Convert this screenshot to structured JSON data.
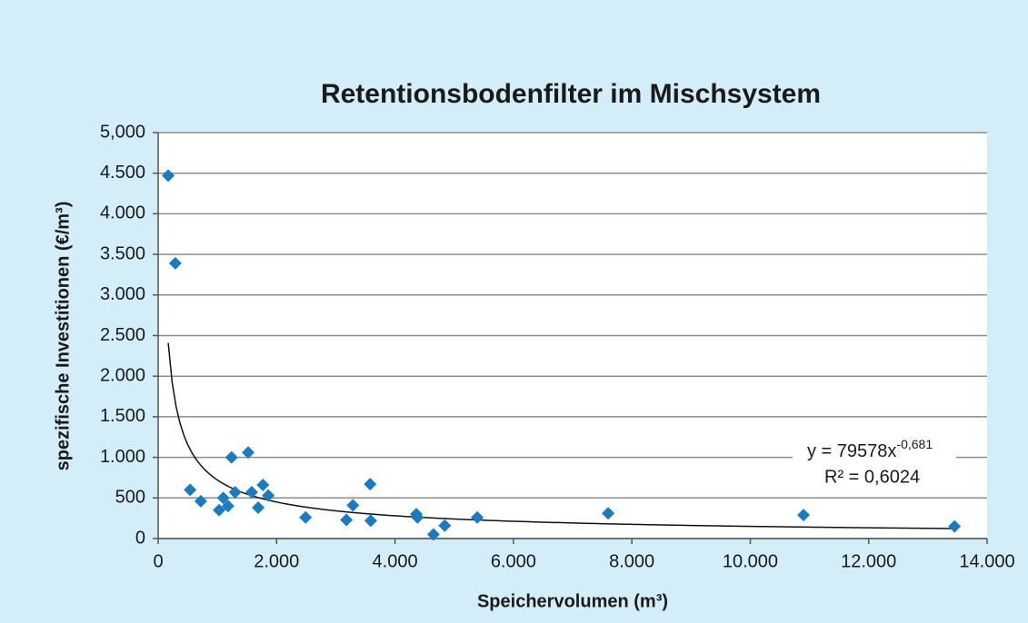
{
  "chart_data": {
    "type": "scatter",
    "title": "Retentionsbodenfilter im Mischsystem",
    "x_label": "Speichervolumen (m³)",
    "y_label": "spezifische Investitionen (€/m³)",
    "color": "#1b7bc0",
    "grid": true,
    "x": [
      170,
      290,
      540,
      720,
      1030,
      1100,
      1180,
      1240,
      1300,
      1520,
      1580,
      1690,
      1770,
      1860,
      2490,
      3180,
      3290,
      3580,
      3590,
      4360,
      4380,
      4650,
      4840,
      5390,
      7600,
      10900,
      13450
    ],
    "values": [
      4470,
      3390,
      600,
      460,
      350,
      500,
      400,
      1000,
      570,
      1060,
      570,
      380,
      660,
      530,
      260,
      230,
      410,
      670,
      220,
      300,
      260,
      50,
      160,
      260,
      310,
      290,
      150
    ],
    "xlim": [
      0,
      14000
    ],
    "xticks": [
      0,
      {
        "value": 2000,
        "label": "2.000"
      },
      {
        "value": 4000,
        "label": "4.000"
      },
      {
        "value": 6000,
        "label": "6.000"
      },
      {
        "value": 8000,
        "label": "8.000"
      },
      {
        "value": 10000,
        "label": "10.000"
      },
      {
        "value": 12000,
        "label": "12.000"
      },
      {
        "value": 14000,
        "label": "14.000"
      }
    ],
    "ylim": [
      0,
      5000
    ],
    "yticks": [
      0,
      {
        "value": 500,
        "label": "500"
      },
      {
        "value": 1000,
        "label": "1.000"
      },
      {
        "value": 1500,
        "label": "1.500"
      },
      {
        "value": 2000,
        "label": "2.000"
      },
      {
        "value": 2500,
        "label": "2.500"
      },
      {
        "value": 3000,
        "label": "3.000"
      },
      {
        "value": 3500,
        "label": "3.500"
      },
      {
        "value": 4000,
        "label": "4.000"
      },
      {
        "value": 4500,
        "label": "4.500"
      },
      {
        "value": 5000,
        "label": "5,000"
      }
    ],
    "trendline": {
      "type": "power",
      "coefficient": 79578,
      "equation_label": "y = 79578x",
      "exponent": {
        "value": -0.681,
        "label": "-0,681"
      },
      "r2": {
        "value": 0.6024,
        "label": "R² = 0,6024"
      }
    }
  }
}
